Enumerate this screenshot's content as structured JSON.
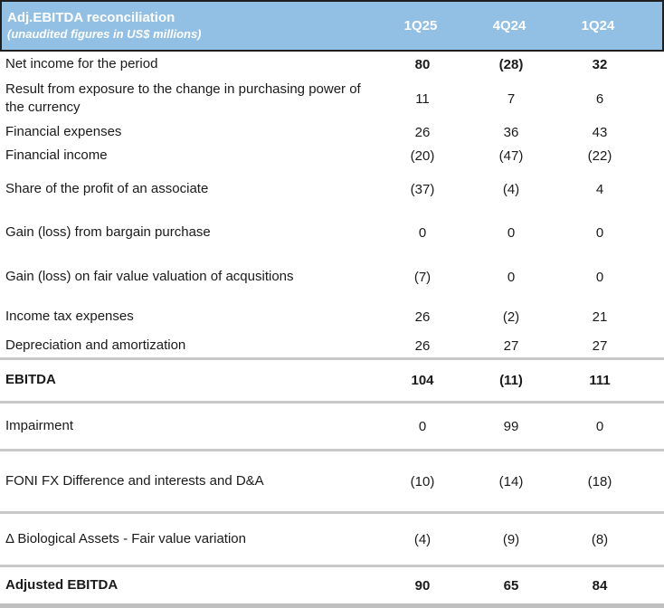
{
  "header": {
    "title": "Adj.EBITDA reconciliation",
    "subtitle": "(unaudited figures in US$ millions)",
    "columns": [
      "1Q25",
      "4Q24",
      "1Q24"
    ]
  },
  "colors": {
    "header_bg": "#92C0E4",
    "header_border": "#1F1F1F",
    "header_text": "#FFFFFF",
    "separator": "#C8C8C8",
    "bottom_bar": "#BFBFBF"
  },
  "rows": [
    {
      "label": "Net income for the period",
      "values": [
        "80",
        "(28)",
        "32"
      ]
    },
    {
      "label": "Result from exposure to the change in purchasing power of the currency",
      "values": [
        "11",
        "7",
        "6"
      ]
    },
    {
      "label": "Financial expenses",
      "values": [
        "26",
        "36",
        "43"
      ]
    },
    {
      "label": "Financial income",
      "values": [
        "(20)",
        "(47)",
        "(22)"
      ]
    },
    {
      "label": "Share of the profit of an associate",
      "values": [
        "(37)",
        "(4)",
        "4"
      ]
    },
    {
      "label": "Gain (loss) from bargain purchase",
      "values": [
        "0",
        "0",
        "0"
      ]
    },
    {
      "label": "Gain (loss) on fair value valuation of acqusitions",
      "values": [
        "(7)",
        "0",
        "0"
      ]
    },
    {
      "label": "Income tax expenses",
      "values": [
        "26",
        "(2)",
        "21"
      ]
    },
    {
      "label": "Depreciation and amortization",
      "values": [
        "26",
        "27",
        "27"
      ]
    },
    {
      "label": "EBITDA",
      "values": [
        "104",
        "(11)",
        "111"
      ]
    },
    {
      "label": "Impairment",
      "values": [
        "0",
        "99",
        "0"
      ]
    },
    {
      "label": "FONI FX Difference and interests and D&A",
      "values": [
        "(10)",
        "(14)",
        "(18)"
      ]
    },
    {
      "label": "Δ Biological Assets - Fair value variation",
      "values": [
        "(4)",
        "(9)",
        "(8)"
      ]
    },
    {
      "label": "Adjusted EBITDA",
      "values": [
        "90",
        "65",
        "84"
      ]
    }
  ]
}
